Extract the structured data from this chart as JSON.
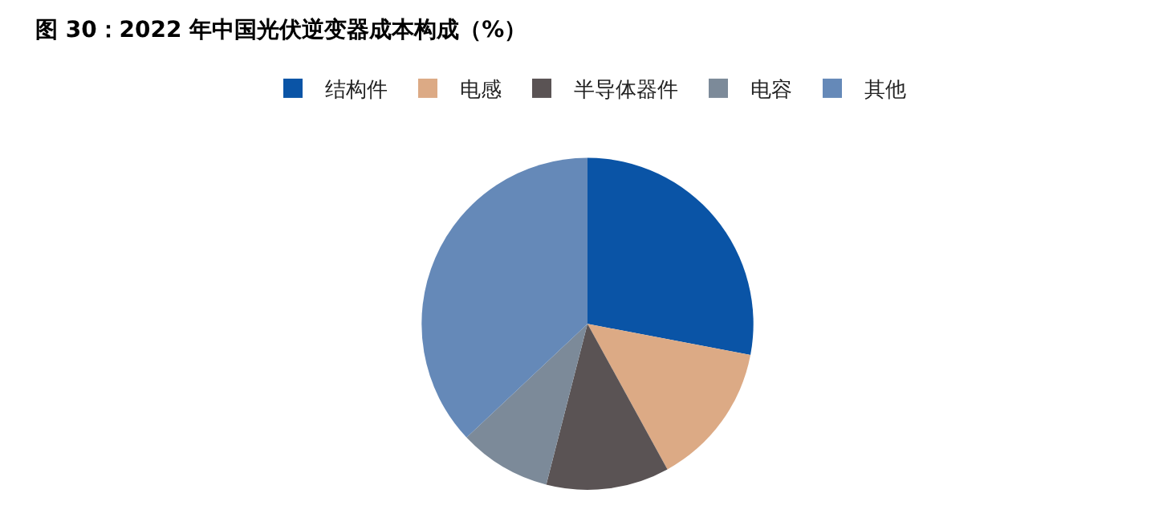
{
  "chart_data": {
    "type": "pie",
    "title": "图 30：2022 年中国光伏逆变器成本构成（%）",
    "categories": [
      "结构件",
      "电感",
      "半导体器件",
      "电容",
      "其他"
    ],
    "values": [
      28,
      14,
      12,
      9,
      37
    ],
    "colors": [
      "#0a54a6",
      "#dcaa85",
      "#5a5354",
      "#7c8a99",
      "#6589b8"
    ],
    "legend": "top"
  }
}
